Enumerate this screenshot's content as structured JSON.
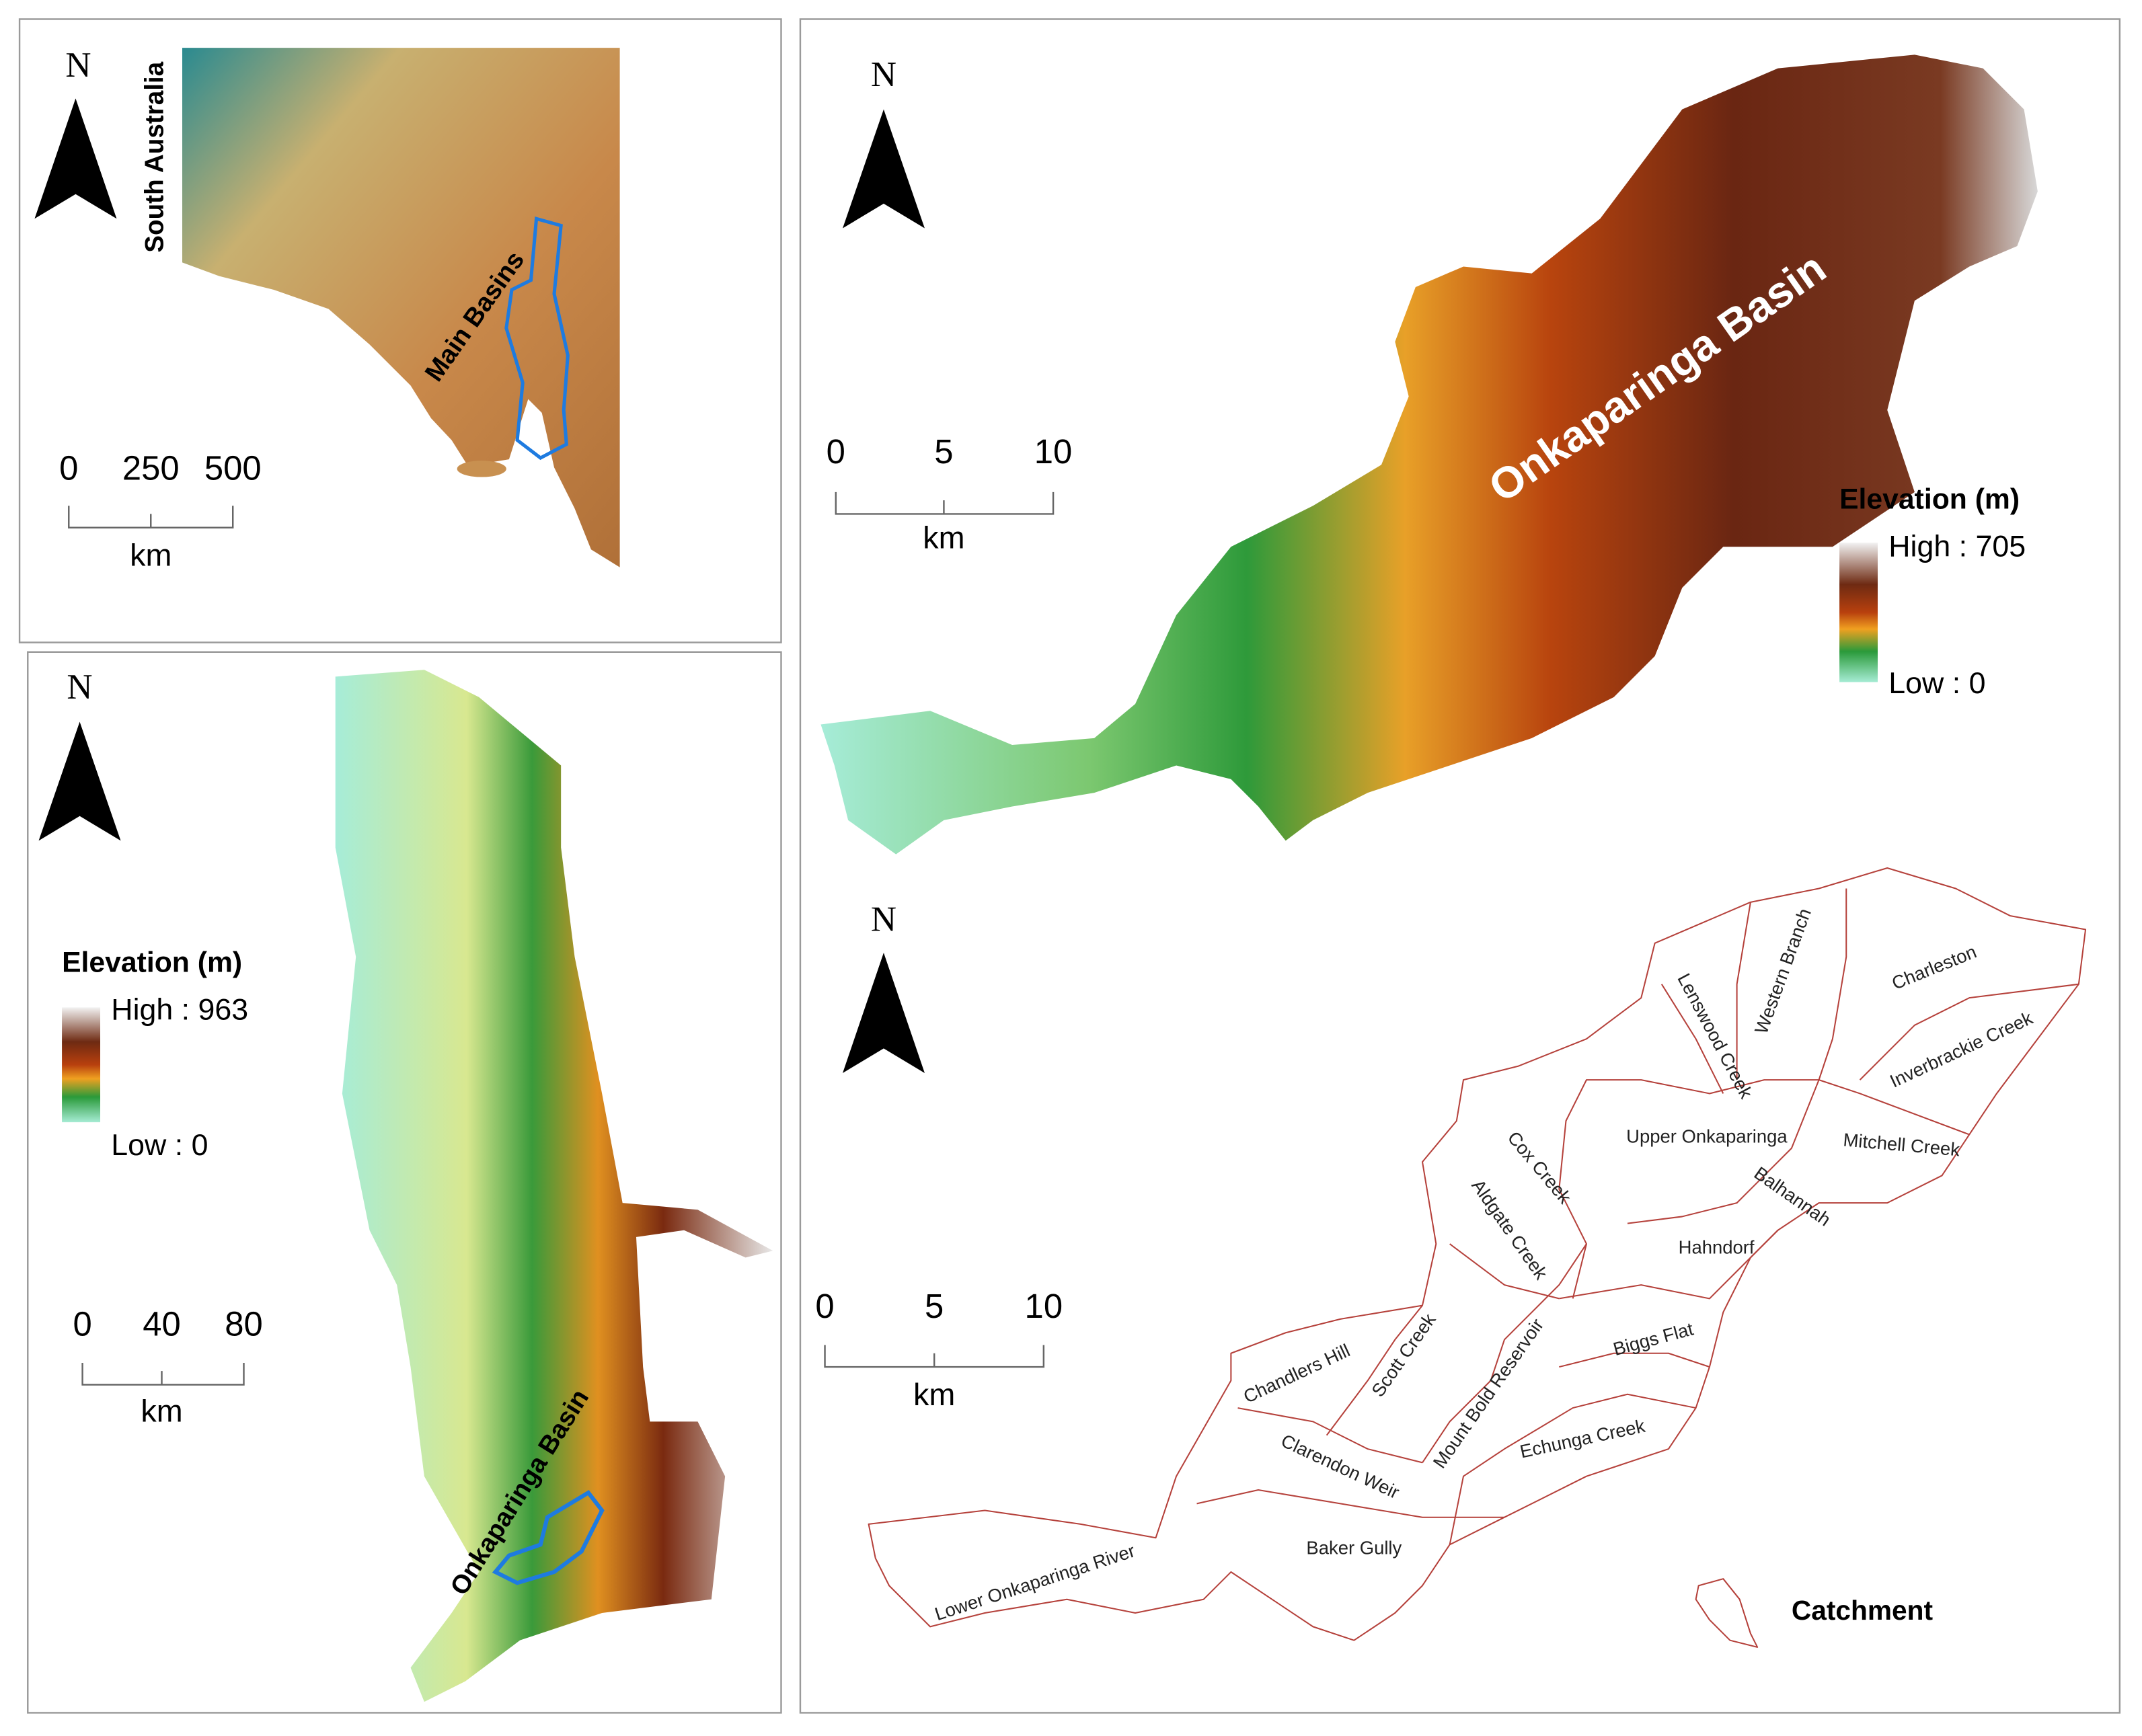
{
  "inset_map": {
    "north": "N",
    "region_label": "South Australia",
    "basin_label": "Main Basins",
    "scale_bar": {
      "ticks": [
        0,
        250,
        500
      ],
      "unit": "km"
    }
  },
  "regional_map": {
    "north": "N",
    "legend": {
      "title": "Elevation (m)",
      "high": "High : 963",
      "low": "Low : 0"
    },
    "scale_bar": {
      "ticks": [
        0,
        40,
        80
      ],
      "unit": "km"
    },
    "basin_label": "Onkaparinga Basin"
  },
  "elevation_map": {
    "north": "N",
    "basin_label": "Onkaparinga Basin",
    "legend": {
      "title": "Elevation (m)",
      "high": "High : 705",
      "low": "Low : 0"
    },
    "scale_bar": {
      "ticks": [
        0,
        5,
        10
      ],
      "unit": "km"
    }
  },
  "catchment_map": {
    "north": "N",
    "scale_bar": {
      "ticks": [
        0,
        5,
        10
      ],
      "unit": "km"
    },
    "catchments": [
      "Lenswood Creek",
      "Western Branch",
      "Charleston",
      "Inverbrackie Creek",
      "Upper Onkaparinga",
      "Mitchell Creek",
      "Cox Creek",
      "Balhannah",
      "Aldgate Creek",
      "Hahndorf",
      "Scott Creek",
      "Chandlers Hill",
      "Mount Bold Reservoir",
      "Biggs Flat",
      "Echunga Creek",
      "Clarendon Weir",
      "Baker Gully",
      "Lower Onkaparinga River"
    ],
    "legend": "Catchment"
  }
}
